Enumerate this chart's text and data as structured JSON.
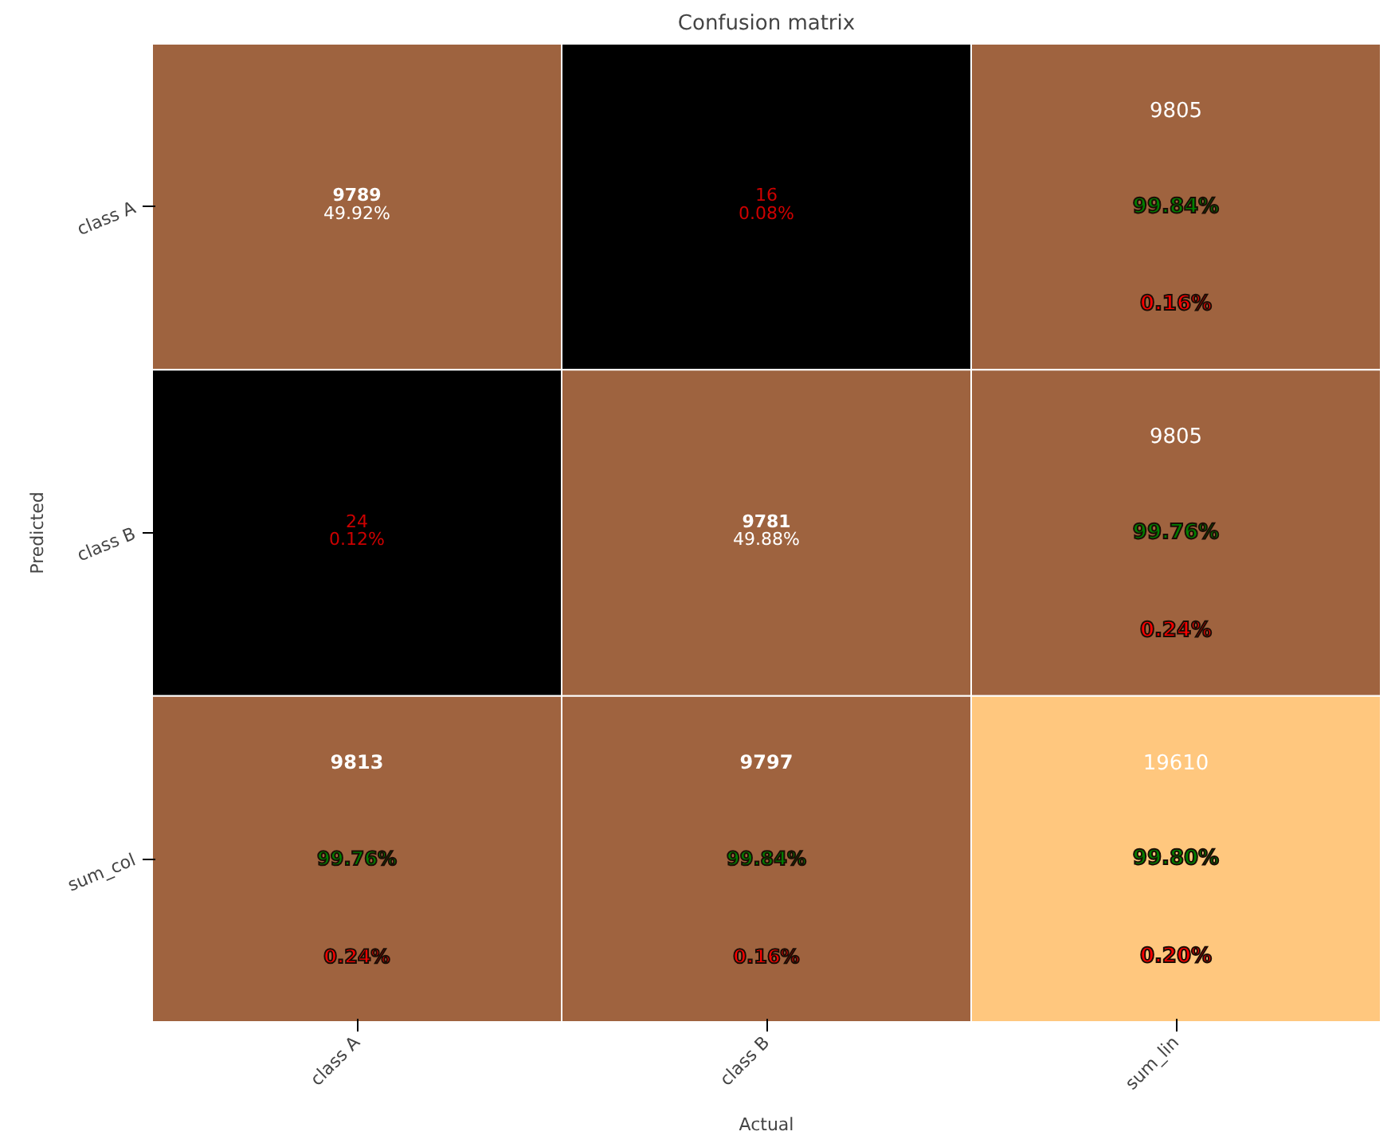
{
  "chart_data": {
    "type": "heatmap",
    "title": "Confusion matrix",
    "xlabel": "Actual",
    "ylabel": "Predicted",
    "categories": [
      "class A",
      "class B",
      "sum_lin"
    ],
    "y_categories": [
      "class A",
      "class B",
      "sum_col"
    ],
    "cells": [
      [
        9789,
        16,
        9805
      ],
      [
        24,
        9781,
        9805
      ],
      [
        9813,
        9797,
        19610
      ]
    ],
    "data_labels": true,
    "annotations": [
      "49.92%",
      "0.08%",
      "99.84%",
      "0.16%",
      "0.12%",
      "49.88%",
      "99.76%",
      "0.24%",
      "99.76%",
      "0.24%",
      "99.84%",
      "0.16%",
      "99.80%",
      "0.20%"
    ]
  }
}
